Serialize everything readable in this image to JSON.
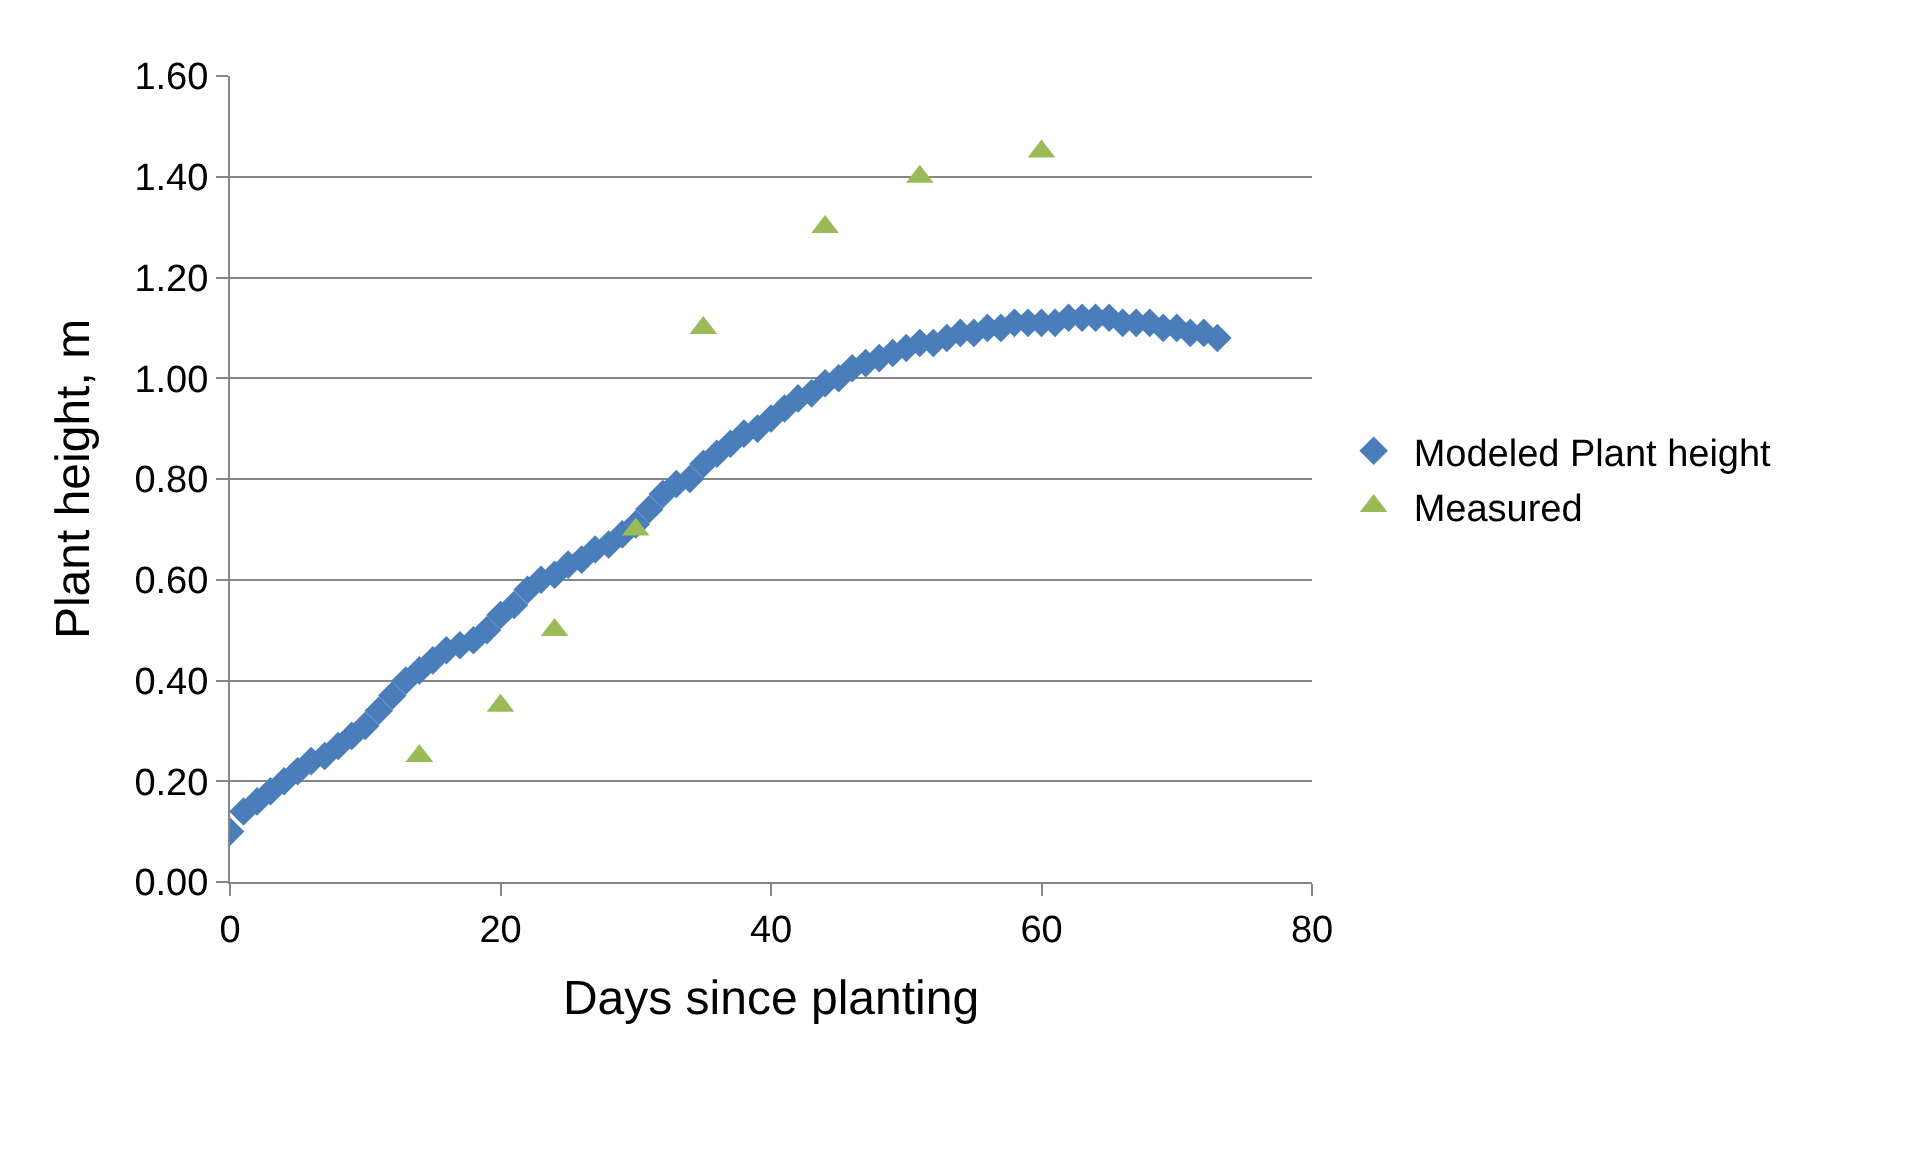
{
  "chart_data": {
    "type": "scatter",
    "xlabel": "Days since planting",
    "ylabel": "Plant height, m",
    "xlim": [
      0,
      80
    ],
    "xticks": [
      0,
      20,
      40,
      60,
      80
    ],
    "ylim": [
      0,
      1.6
    ],
    "yticks": [
      {
        "value": 0,
        "label": "0.00"
      },
      {
        "value": 0.2,
        "label": "0.20"
      },
      {
        "value": 0.4,
        "label": "0.40"
      },
      {
        "value": 0.6,
        "label": "0.60"
      },
      {
        "value": 0.8,
        "label": "0.80"
      },
      {
        "value": 1.0,
        "label": "1.00"
      },
      {
        "value": 1.2,
        "label": "1.20"
      },
      {
        "value": 1.4,
        "label": "1.40"
      },
      {
        "value": 1.6,
        "label": "1.60"
      }
    ],
    "grid": "y",
    "legend": "right",
    "series": [
      {
        "name": "Modeled Plant height",
        "color": "#4a7ebb",
        "marker": "diamond",
        "x": [
          0,
          1,
          2,
          3,
          4,
          5,
          6,
          7,
          8,
          9,
          10,
          11,
          12,
          13,
          14,
          15,
          16,
          17,
          18,
          19,
          20,
          21,
          22,
          23,
          24,
          25,
          26,
          27,
          28,
          29,
          30,
          31,
          32,
          33,
          34,
          35,
          36,
          37,
          38,
          39,
          40,
          41,
          42,
          43,
          44,
          45,
          46,
          47,
          48,
          49,
          50,
          51,
          52,
          53,
          54,
          55,
          56,
          57,
          58,
          59,
          60,
          61,
          62,
          63,
          64,
          65,
          66,
          67,
          68,
          69,
          70,
          71,
          72,
          73
        ],
        "values": [
          0.1,
          0.14,
          0.16,
          0.18,
          0.2,
          0.22,
          0.24,
          0.25,
          0.27,
          0.29,
          0.31,
          0.34,
          0.37,
          0.4,
          0.42,
          0.44,
          0.46,
          0.47,
          0.48,
          0.5,
          0.53,
          0.55,
          0.58,
          0.6,
          0.61,
          0.63,
          0.64,
          0.66,
          0.67,
          0.69,
          0.71,
          0.74,
          0.77,
          0.79,
          0.8,
          0.83,
          0.85,
          0.87,
          0.89,
          0.9,
          0.92,
          0.94,
          0.96,
          0.97,
          0.99,
          1.0,
          1.02,
          1.03,
          1.04,
          1.05,
          1.06,
          1.07,
          1.07,
          1.08,
          1.09,
          1.09,
          1.1,
          1.1,
          1.11,
          1.11,
          1.11,
          1.11,
          1.12,
          1.12,
          1.12,
          1.12,
          1.11,
          1.11,
          1.11,
          1.1,
          1.1,
          1.09,
          1.09,
          1.08
        ]
      },
      {
        "name": "Measured",
        "color": "#9bbb59",
        "marker": "triangle",
        "x": [
          14,
          20,
          24,
          30,
          35,
          44,
          51,
          60
        ],
        "values": [
          0.25,
          0.35,
          0.5,
          0.7,
          1.1,
          1.3,
          1.4,
          1.45
        ]
      }
    ]
  }
}
